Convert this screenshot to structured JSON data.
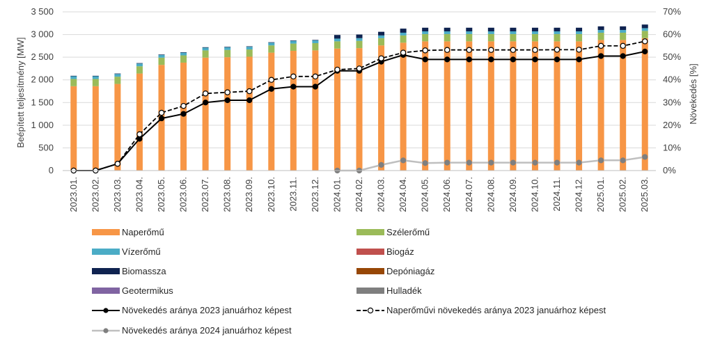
{
  "chart_data": {
    "type": "bar",
    "stacked": true,
    "categories": [
      "2023.01.",
      "2023.02.",
      "2023.03.",
      "2023.04.",
      "2023.05.",
      "2023.06.",
      "2023.07.",
      "2023.08.",
      "2023.09.",
      "2023.10.",
      "2023.11.",
      "2023.12.",
      "2024.01.",
      "2024.02.",
      "2024.03.",
      "2024.04.",
      "2024.05.",
      "2024.06.",
      "2024.07.",
      "2024.08.",
      "2024.09.",
      "2024.10.",
      "2024.11.",
      "2024.12.",
      "2025.01.",
      "2025.02.",
      "2025.03."
    ],
    "ylabel": "Beépített teljesítmény [MW]",
    "y2label": "Növekedés [%]",
    "ylim": [
      0,
      3500
    ],
    "y2lim": [
      0,
      70
    ],
    "yticks": [
      "0",
      "500",
      "1 000",
      "1 500",
      "2 000",
      "2 500",
      "3 000",
      "3 500"
    ],
    "y2ticks": [
      "0%",
      "10%",
      "20%",
      "30%",
      "40%",
      "50%",
      "60%",
      "70%"
    ],
    "grid": true,
    "legend_position": "bottom",
    "series": [
      {
        "name": "Naperőmű",
        "color": "#f79646",
        "values": [
          1860,
          1860,
          1910,
          2140,
          2330,
          2380,
          2490,
          2500,
          2510,
          2600,
          2640,
          2650,
          2690,
          2700,
          2760,
          2820,
          2850,
          2850,
          2850,
          2850,
          2850,
          2850,
          2850,
          2850,
          2880,
          2880,
          2920
        ]
      },
      {
        "name": "Szélerőmű",
        "color": "#9bbb59",
        "values": [
          160,
          160,
          160,
          160,
          160,
          160,
          160,
          160,
          160,
          160,
          160,
          160,
          160,
          160,
          160,
          160,
          160,
          160,
          160,
          160,
          160,
          160,
          160,
          160,
          160,
          160,
          160
        ]
      },
      {
        "name": "Vízerőmű",
        "color": "#4bacc6",
        "values": [
          60,
          60,
          60,
          60,
          60,
          60,
          60,
          60,
          60,
          60,
          60,
          60,
          60,
          60,
          60,
          60,
          60,
          60,
          60,
          60,
          60,
          60,
          60,
          60,
          60,
          60,
          60
        ]
      },
      {
        "name": "Biogáz",
        "color": "#c0504d",
        "values": [
          0,
          0,
          0,
          0,
          0,
          0,
          0,
          0,
          0,
          0,
          0,
          0,
          0,
          0,
          0,
          0,
          0,
          0,
          0,
          0,
          0,
          0,
          0,
          0,
          0,
          0,
          0
        ]
      },
      {
        "name": "Biomassza",
        "color": "#0f2350",
        "values": [
          10,
          10,
          10,
          10,
          10,
          10,
          10,
          10,
          10,
          10,
          10,
          10,
          80,
          80,
          80,
          90,
          80,
          80,
          80,
          80,
          80,
          80,
          80,
          80,
          80,
          80,
          80
        ]
      },
      {
        "name": "Depóniagáz",
        "color": "#974706",
        "values": [
          0,
          0,
          0,
          0,
          0,
          0,
          0,
          0,
          0,
          0,
          0,
          0,
          0,
          0,
          0,
          0,
          0,
          0,
          0,
          0,
          0,
          0,
          0,
          0,
          0,
          0,
          0
        ]
      },
      {
        "name": "Geotermikus",
        "color": "#8064a2",
        "values": [
          0,
          0,
          0,
          0,
          0,
          0,
          0,
          0,
          0,
          0,
          0,
          0,
          0,
          0,
          0,
          0,
          0,
          0,
          0,
          0,
          0,
          0,
          0,
          0,
          0,
          0,
          0
        ]
      },
      {
        "name": "Hulladék",
        "color": "#7f7f7f",
        "values": [
          0,
          0,
          0,
          0,
          0,
          0,
          0,
          0,
          0,
          0,
          0,
          0,
          0,
          0,
          0,
          0,
          0,
          0,
          0,
          0,
          0,
          0,
          0,
          0,
          0,
          0,
          0
        ]
      }
    ],
    "line_series": [
      {
        "name": "Növekedés aránya 2023 januárhoz képest",
        "axis": "right",
        "style": "solid-filled",
        "color": "#000000",
        "values": [
          0,
          0,
          3,
          14,
          23,
          25,
          30,
          31,
          31,
          36,
          37,
          37,
          44,
          44,
          48,
          51,
          49,
          49,
          49,
          49,
          49,
          49,
          49,
          49,
          50.5,
          50.5,
          52.5
        ]
      },
      {
        "name": "Naperőművi növekedés aránya 2023 januárhoz képest",
        "axis": "right",
        "style": "dashed-hollow",
        "color": "#000000",
        "values": [
          0,
          0,
          3,
          16,
          25.5,
          28.5,
          34,
          34.5,
          35,
          40,
          41.5,
          41.5,
          44.5,
          45,
          49.5,
          52,
          53,
          53.2,
          53.2,
          53.2,
          53.2,
          53.2,
          53.3,
          53.3,
          55,
          55,
          57
        ]
      },
      {
        "name": "Növekedés aránya 2024 januárhoz képest",
        "axis": "right",
        "style": "grey",
        "color": "#bfbfbf",
        "marker_color": "#7f7f7f",
        "start_index": 12,
        "values": [
          null,
          null,
          null,
          null,
          null,
          null,
          null,
          null,
          null,
          null,
          null,
          null,
          0,
          0,
          2.5,
          4.5,
          3.3,
          3.5,
          3.5,
          3.5,
          3.5,
          3.5,
          3.5,
          3.5,
          4.5,
          4.5,
          6
        ]
      }
    ]
  }
}
